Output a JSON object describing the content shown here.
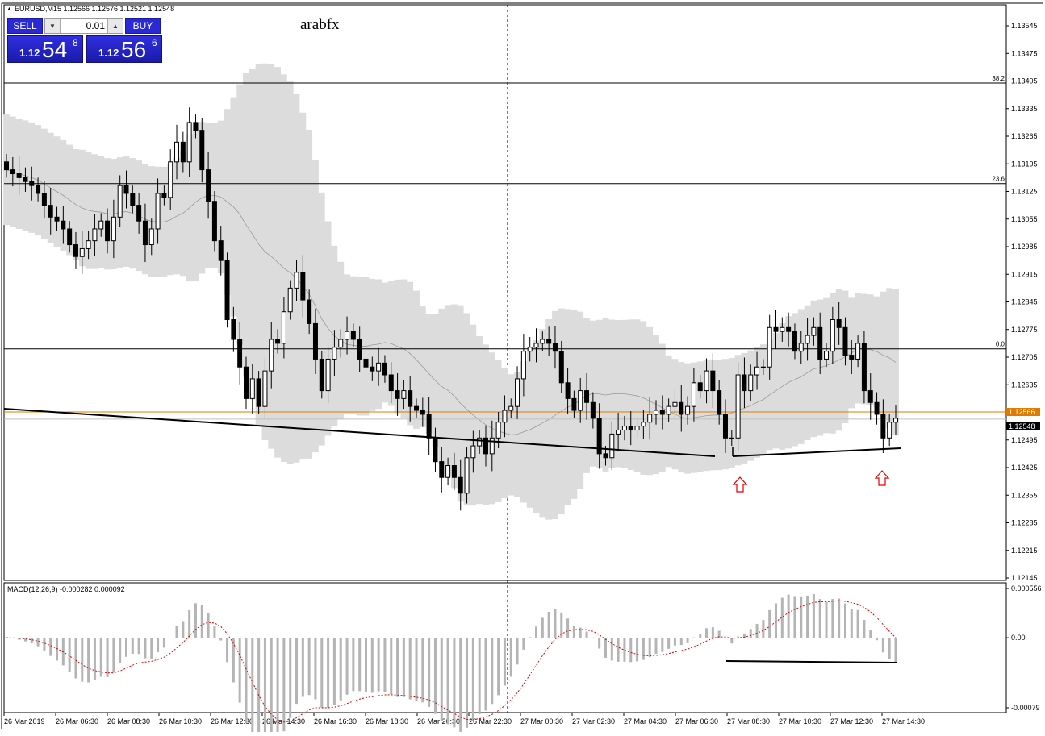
{
  "header": {
    "symbol_line": "EURUSD,M15  1.12566 1.12576 1.12521 1.12548",
    "watermark": "arabfx"
  },
  "trade_panel": {
    "sell_label": "SELL",
    "buy_label": "BUY",
    "lot_value": "0.01",
    "bid": {
      "prefix": "1.12",
      "big": "54",
      "sup": "8"
    },
    "ask": {
      "prefix": "1.12",
      "big": "56",
      "sup": "6"
    }
  },
  "chart_data": {
    "type": "candlestick",
    "symbol": "EURUSD",
    "timeframe": "M15",
    "ohlc_header": {
      "open": 1.12566,
      "high": 1.12576,
      "low": 1.12521,
      "close": 1.12548
    },
    "ylim": [
      1.12145,
      1.13545
    ],
    "yticks": [
      "1.13545",
      "1.13475",
      "1.13405",
      "1.13335",
      "1.13265",
      "1.13195",
      "1.13125",
      "1.13055",
      "1.12985",
      "1.12915",
      "1.12845",
      "1.12775",
      "1.12705",
      "1.12635",
      "1.12565",
      "1.12495",
      "1.12425",
      "1.12355",
      "1.12285",
      "1.12215",
      "1.12145"
    ],
    "xticks": [
      "26 Mar 2019",
      "26 Mar 06:30",
      "26 Mar 08:30",
      "26 Mar 10:30",
      "26 Mar 12:30",
      "26 Mar 14:30",
      "26 Mar 16:30",
      "26 Mar 18:30",
      "26 Mar 20:30",
      "26 Mar 22:30",
      "27 Mar 00:30",
      "27 Mar 02:30",
      "27 Mar 04:30",
      "27 Mar 06:30",
      "27 Mar 08:30",
      "27 Mar 10:30",
      "27 Mar 12:30",
      "27 Mar 14:30"
    ],
    "fibo_levels": [
      {
        "label": "38.2",
        "price": 1.134
      },
      {
        "label": "23.6",
        "price": 1.13145
      },
      {
        "label": "0.0",
        "price": 1.12726
      }
    ],
    "ask_line": {
      "label": "1.12566",
      "price": 1.12566,
      "color": "#e07b00"
    },
    "bid_line": {
      "label": "1.12548",
      "price": 1.12548
    },
    "closes": [
      1.1318,
      1.1317,
      1.1316,
      1.1315,
      1.1314,
      1.1312,
      1.1309,
      1.1306,
      1.1305,
      1.1303,
      1.1299,
      1.1296,
      1.1298,
      1.13,
      1.1303,
      1.1305,
      1.13,
      1.1306,
      1.1314,
      1.1312,
      1.1309,
      1.1305,
      1.1299,
      1.1303,
      1.1312,
      1.1311,
      1.132,
      1.1325,
      1.132,
      1.133,
      1.1328,
      1.1318,
      1.131,
      1.13,
      1.1295,
      1.128,
      1.1275,
      1.1268,
      1.126,
      1.1265,
      1.1258,
      1.1267,
      1.1275,
      1.1274,
      1.1282,
      1.1288,
      1.1292,
      1.1285,
      1.1279,
      1.127,
      1.1262,
      1.127,
      1.1273,
      1.1275,
      1.1277,
      1.1275,
      1.127,
      1.1268,
      1.1267,
      1.1269,
      1.1266,
      1.1262,
      1.126,
      1.1262,
      1.1258,
      1.1257,
      1.1256,
      1.125,
      1.1244,
      1.124,
      1.1243,
      1.124,
      1.1236,
      1.1245,
      1.1248,
      1.125,
      1.1246,
      1.125,
      1.1254,
      1.1257,
      1.1258,
      1.1265,
      1.1272,
      1.1273,
      1.1274,
      1.1275,
      1.1274,
      1.1272,
      1.1264,
      1.126,
      1.1257,
      1.1262,
      1.1259,
      1.1255,
      1.1246,
      1.1245,
      1.1251,
      1.1252,
      1.1253,
      1.1252,
      1.1253,
      1.1254,
      1.1256,
      1.1257,
      1.1256,
      1.1258,
      1.1259,
      1.1256,
      1.1258,
      1.1264,
      1.1262,
      1.1267,
      1.1262,
      1.1256,
      1.125,
      1.125,
      1.1266,
      1.1262,
      1.1266,
      1.1268,
      1.1268,
      1.1278,
      1.1277,
      1.1278,
      1.1277,
      1.1272,
      1.1274,
      1.1276,
      1.1278,
      1.127,
      1.1272,
      1.128,
      1.1278,
      1.1271,
      1.127,
      1.1274,
      1.1262,
      1.1259,
      1.1256,
      1.125,
      1.1254,
      1.1255
    ],
    "bollinger_band": "shaded",
    "trendlines": 3,
    "arrows": 2,
    "macd": {
      "label": "MACD(12,26,9) -0.000282 0.000092",
      "ylim": [
        -0.00079,
        0.000556
      ],
      "yticks": [
        "0.000556",
        "0.00",
        "-0.00079"
      ]
    }
  }
}
